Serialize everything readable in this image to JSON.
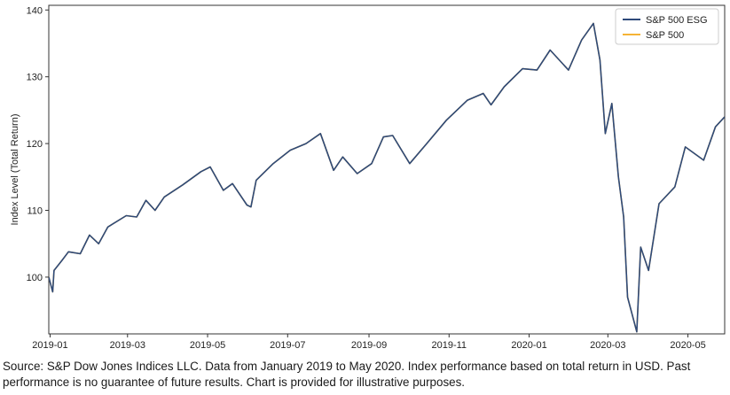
{
  "chart_data": {
    "type": "line",
    "title": "",
    "xlabel": "",
    "ylabel": "Index Level (Total Return)",
    "xlim": [
      "2018-12-31",
      "2020-05-29"
    ],
    "ylim": [
      91.5,
      140.7
    ],
    "x_ticks": [
      "2019-01",
      "2019-03",
      "2019-05",
      "2019-07",
      "2019-09",
      "2019-11",
      "2020-01",
      "2020-03",
      "2020-05"
    ],
    "y_ticks": [
      100,
      110,
      120,
      130,
      140
    ],
    "grid": false,
    "legend": "top-right",
    "series": [
      {
        "name": "S&P 500 ESG",
        "color": "#2e4a7a",
        "points": [
          [
            "2018-12-31",
            100.0
          ],
          [
            "2019-01-03",
            97.8
          ],
          [
            "2019-01-04",
            101.0
          ],
          [
            "2019-01-10",
            102.5
          ],
          [
            "2019-01-15",
            103.8
          ],
          [
            "2019-01-24",
            103.5
          ],
          [
            "2019-01-31",
            106.3
          ],
          [
            "2019-02-07",
            105.0
          ],
          [
            "2019-02-14",
            107.5
          ],
          [
            "2019-02-28",
            109.2
          ],
          [
            "2019-03-08",
            109.0
          ],
          [
            "2019-03-15",
            111.5
          ],
          [
            "2019-03-22",
            110.0
          ],
          [
            "2019-03-29",
            112.0
          ],
          [
            "2019-04-12",
            113.8
          ],
          [
            "2019-04-26",
            115.8
          ],
          [
            "2019-05-03",
            116.5
          ],
          [
            "2019-05-13",
            113.0
          ],
          [
            "2019-05-20",
            114.0
          ],
          [
            "2019-05-31",
            110.8
          ],
          [
            "2019-06-03",
            110.5
          ],
          [
            "2019-06-07",
            114.5
          ],
          [
            "2019-06-20",
            117.0
          ],
          [
            "2019-07-03",
            119.0
          ],
          [
            "2019-07-15",
            120.0
          ],
          [
            "2019-07-26",
            121.5
          ],
          [
            "2019-08-05",
            116.0
          ],
          [
            "2019-08-12",
            118.0
          ],
          [
            "2019-08-23",
            115.5
          ],
          [
            "2019-09-03",
            117.0
          ],
          [
            "2019-09-12",
            121.0
          ],
          [
            "2019-09-19",
            121.2
          ],
          [
            "2019-10-02",
            117.0
          ],
          [
            "2019-10-15",
            120.0
          ],
          [
            "2019-10-30",
            123.5
          ],
          [
            "2019-11-15",
            126.5
          ],
          [
            "2019-11-27",
            127.5
          ],
          [
            "2019-12-03",
            125.8
          ],
          [
            "2019-12-13",
            128.5
          ],
          [
            "2019-12-27",
            131.2
          ],
          [
            "2020-01-07",
            131.0
          ],
          [
            "2020-01-17",
            134.0
          ],
          [
            "2020-01-31",
            131.0
          ],
          [
            "2020-02-10",
            135.5
          ],
          [
            "2020-02-19",
            138.0
          ],
          [
            "2020-02-24",
            132.5
          ],
          [
            "2020-02-28",
            121.5
          ],
          [
            "2020-03-04",
            126.0
          ],
          [
            "2020-03-09",
            115.0
          ],
          [
            "2020-03-13",
            109.0
          ],
          [
            "2020-03-16",
            97.0
          ],
          [
            "2020-03-23",
            91.8
          ],
          [
            "2020-03-26",
            104.5
          ],
          [
            "2020-04-01",
            101.0
          ],
          [
            "2020-04-09",
            111.0
          ],
          [
            "2020-04-21",
            113.5
          ],
          [
            "2020-04-29",
            119.5
          ],
          [
            "2020-05-13",
            117.5
          ],
          [
            "2020-05-22",
            122.5
          ],
          [
            "2020-05-29",
            124.0
          ]
        ]
      },
      {
        "name": "S&P 500",
        "color": "#f5b335",
        "points": [
          [
            "2018-12-31",
            100.0
          ],
          [
            "2019-01-03",
            97.8
          ],
          [
            "2019-01-04",
            101.0
          ],
          [
            "2019-01-10",
            102.5
          ],
          [
            "2019-01-15",
            103.8
          ],
          [
            "2019-01-24",
            103.5
          ],
          [
            "2019-01-31",
            106.3
          ],
          [
            "2019-02-07",
            105.0
          ],
          [
            "2019-02-14",
            107.5
          ],
          [
            "2019-02-28",
            109.2
          ],
          [
            "2019-03-08",
            109.0
          ],
          [
            "2019-03-15",
            111.5
          ],
          [
            "2019-03-22",
            110.0
          ],
          [
            "2019-03-29",
            112.0
          ],
          [
            "2019-04-12",
            113.8
          ],
          [
            "2019-04-26",
            115.8
          ],
          [
            "2019-05-03",
            116.5
          ],
          [
            "2019-05-13",
            113.0
          ],
          [
            "2019-05-20",
            114.0
          ],
          [
            "2019-05-31",
            110.8
          ],
          [
            "2019-06-03",
            110.5
          ],
          [
            "2019-06-07",
            114.5
          ],
          [
            "2019-06-20",
            117.0
          ],
          [
            "2019-07-03",
            119.0
          ],
          [
            "2019-07-15",
            120.0
          ],
          [
            "2019-07-26",
            121.5
          ],
          [
            "2019-08-05",
            116.0
          ],
          [
            "2019-08-12",
            118.0
          ],
          [
            "2019-08-23",
            115.5
          ],
          [
            "2019-09-03",
            117.0
          ],
          [
            "2019-09-12",
            121.0
          ],
          [
            "2019-09-19",
            121.2
          ],
          [
            "2019-10-02",
            117.0
          ],
          [
            "2019-10-15",
            120.0
          ],
          [
            "2019-10-30",
            123.5
          ],
          [
            "2019-11-15",
            126.5
          ],
          [
            "2019-11-27",
            127.5
          ],
          [
            "2019-12-03",
            125.8
          ],
          [
            "2019-12-13",
            128.5
          ],
          [
            "2019-12-27",
            131.2
          ],
          [
            "2020-01-07",
            131.0
          ],
          [
            "2020-01-17",
            134.0
          ],
          [
            "2020-01-31",
            131.0
          ],
          [
            "2020-02-10",
            135.5
          ],
          [
            "2020-02-19",
            138.0
          ],
          [
            "2020-02-24",
            132.5
          ],
          [
            "2020-02-28",
            121.5
          ],
          [
            "2020-03-04",
            126.0
          ],
          [
            "2020-03-09",
            115.0
          ],
          [
            "2020-03-13",
            109.0
          ],
          [
            "2020-03-16",
            97.0
          ],
          [
            "2020-03-23",
            91.8
          ],
          [
            "2020-03-26",
            104.5
          ],
          [
            "2020-04-01",
            101.0
          ],
          [
            "2020-04-09",
            111.0
          ],
          [
            "2020-04-21",
            113.5
          ],
          [
            "2020-04-29",
            119.5
          ],
          [
            "2020-05-13",
            117.5
          ],
          [
            "2020-05-22",
            122.5
          ],
          [
            "2020-05-29",
            124.0
          ]
        ]
      }
    ]
  },
  "source_note": [
    "Source: S&P Dow Jones Indices LLC. Data from January 2019 to May 2020. Index performance based on total return in USD. Past",
    "performance is no guarantee of future results. Chart is provided for illustrative purposes."
  ]
}
